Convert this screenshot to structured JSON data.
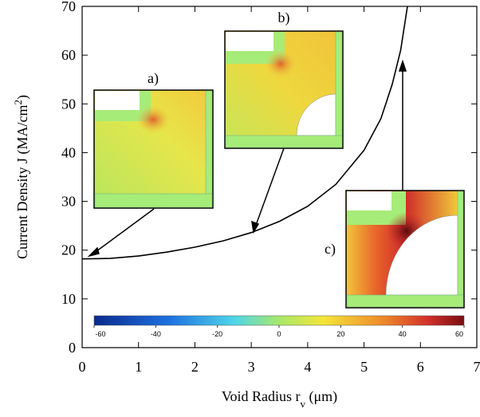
{
  "chart_data": {
    "type": "line",
    "x_label": [
      "Void Radius r",
      "v",
      " (μm)"
    ],
    "y_label": [
      "Current Density J (MA/cm",
      "2",
      ")"
    ],
    "x": [
      0,
      0.5,
      1,
      1.5,
      2,
      2.5,
      3,
      3.5,
      4,
      4.5,
      5,
      5.3,
      5.5,
      5.65,
      5.77
    ],
    "series": [
      {
        "color": "#000000",
        "values": [
          18.2,
          18.3,
          18.8,
          19.6,
          20.6,
          21.9,
          23.6,
          25.9,
          29.0,
          33.5,
          40.5,
          47,
          54,
          61,
          70
        ]
      }
    ],
    "xlim": [
      0,
      7
    ],
    "xticks": [
      0,
      1,
      2,
      3,
      4,
      5,
      6,
      7
    ],
    "ylim": [
      0,
      70
    ],
    "yticks": [
      0,
      10,
      20,
      30,
      40,
      50,
      60,
      70
    ],
    "insets": [
      "a)",
      "b)",
      "c)"
    ],
    "colorbar": {
      "lim": [
        -60,
        60
      ],
      "ticks": [
        -60,
        -40,
        -20,
        0,
        20,
        40,
        60
      ]
    }
  }
}
